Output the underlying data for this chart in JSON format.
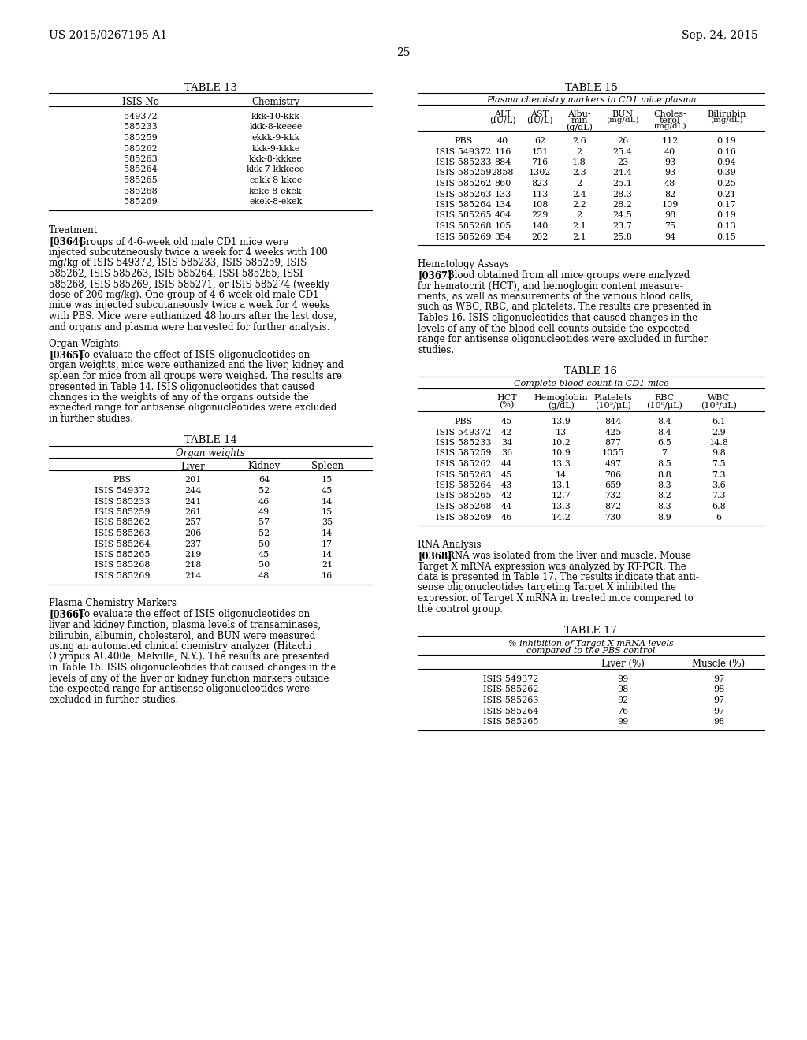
{
  "page_header_left": "US 2015/0267195 A1",
  "page_header_right": "Sep. 24, 2015",
  "page_number": "25",
  "table13": {
    "title": "TABLE 13",
    "headers": [
      "ISIS No",
      "Chemistry"
    ],
    "rows": [
      [
        "549372",
        "kkk-10-kkk"
      ],
      [
        "585233",
        "kkk-8-keeee"
      ],
      [
        "585259",
        "ekkk-9-kkk"
      ],
      [
        "585262",
        "kkk-9-kkke"
      ],
      [
        "585263",
        "kkk-8-kkkee"
      ],
      [
        "585264",
        "kkk-7-kkkeee"
      ],
      [
        "585265",
        "eekk-8-kkee"
      ],
      [
        "585268",
        "keke-8-ekek"
      ],
      [
        "585269",
        "ekek-8-ekek"
      ]
    ]
  },
  "table14": {
    "title": "TABLE 14",
    "subtitle": "Organ weights",
    "col_headers": [
      "",
      "Liver",
      "Kidney",
      "Spleen"
    ],
    "rows": [
      [
        "PBS",
        "201",
        "64",
        "15"
      ],
      [
        "ISIS 549372",
        "244",
        "52",
        "45"
      ],
      [
        "ISIS 585233",
        "241",
        "46",
        "14"
      ],
      [
        "ISIS 585259",
        "261",
        "49",
        "15"
      ],
      [
        "ISIS 585262",
        "257",
        "57",
        "35"
      ],
      [
        "ISIS 585263",
        "206",
        "52",
        "14"
      ],
      [
        "ISIS 585264",
        "237",
        "50",
        "17"
      ],
      [
        "ISIS 585265",
        "219",
        "45",
        "14"
      ],
      [
        "ISIS 585268",
        "218",
        "50",
        "21"
      ],
      [
        "ISIS 585269",
        "214",
        "48",
        "16"
      ]
    ]
  },
  "table15": {
    "title": "TABLE 15",
    "subtitle": "Plasma chemistry markers in CD1 mice plasma",
    "rows": [
      [
        "PBS",
        "40",
        "62",
        "2.6",
        "26",
        "112",
        "0.19"
      ],
      [
        "ISIS 549372",
        "116",
        "151",
        "2",
        "25.4",
        "40",
        "0.16"
      ],
      [
        "ISIS 585233",
        "884",
        "716",
        "1.8",
        "23",
        "93",
        "0.94"
      ],
      [
        "ISIS 585259",
        "2858",
        "1302",
        "2.3",
        "24.4",
        "93",
        "0.39"
      ],
      [
        "ISIS 585262",
        "860",
        "823",
        "2",
        "25.1",
        "48",
        "0.25"
      ],
      [
        "ISIS 585263",
        "133",
        "113",
        "2.4",
        "28.3",
        "82",
        "0.21"
      ],
      [
        "ISIS 585264",
        "134",
        "108",
        "2.2",
        "28.2",
        "109",
        "0.17"
      ],
      [
        "ISIS 585265",
        "404",
        "229",
        "2",
        "24.5",
        "98",
        "0.19"
      ],
      [
        "ISIS 585268",
        "105",
        "140",
        "2.1",
        "23.7",
        "75",
        "0.13"
      ],
      [
        "ISIS 585269",
        "354",
        "202",
        "2.1",
        "25.8",
        "94",
        "0.15"
      ]
    ]
  },
  "table16": {
    "title": "TABLE 16",
    "subtitle": "Complete blood count in CD1 mice",
    "rows": [
      [
        "PBS",
        "45",
        "13.9",
        "844",
        "8.4",
        "6.1"
      ],
      [
        "ISIS 549372",
        "42",
        "13",
        "425",
        "8.4",
        "2.9"
      ],
      [
        "ISIS 585233",
        "34",
        "10.2",
        "877",
        "6.5",
        "14.8"
      ],
      [
        "ISIS 585259",
        "36",
        "10.9",
        "1055",
        "7",
        "9.8"
      ],
      [
        "ISIS 585262",
        "44",
        "13.3",
        "497",
        "8.5",
        "7.5"
      ],
      [
        "ISIS 585263",
        "45",
        "14",
        "706",
        "8.8",
        "7.3"
      ],
      [
        "ISIS 585264",
        "43",
        "13.1",
        "659",
        "8.3",
        "3.6"
      ],
      [
        "ISIS 585265",
        "42",
        "12.7",
        "732",
        "8.2",
        "7.3"
      ],
      [
        "ISIS 585268",
        "44",
        "13.3",
        "872",
        "8.3",
        "6.8"
      ],
      [
        "ISIS 585269",
        "46",
        "14.2",
        "730",
        "8.9",
        "6"
      ]
    ]
  },
  "table17": {
    "title": "TABLE 17",
    "subtitle1": "% inhibition of Target X mRNA levels",
    "subtitle2": "compared to the PBS control",
    "col_headers": [
      "",
      "Liver (%)",
      "Muscle (%)"
    ],
    "rows": [
      [
        "ISIS 549372",
        "99",
        "97"
      ],
      [
        "ISIS 585262",
        "98",
        "98"
      ],
      [
        "ISIS 585263",
        "92",
        "97"
      ],
      [
        "ISIS 585264",
        "76",
        "97"
      ],
      [
        "ISIS 585265",
        "99",
        "98"
      ]
    ]
  },
  "treatment_heading": "Treatment",
  "treatment_lines": [
    "[0364]",
    "Groups of 4-6-week old male CD1 mice were",
    "injected subcutaneously twice a week for 4 weeks with 100",
    "mg/kg of ISIS 549372, ISIS 585233, ISIS 585259, ISIS",
    "585262, ISIS 585263, ISIS 585264, ISSI 585265, ISSI",
    "585268, ISIS 585269, ISIS 585271, or ISIS 585274 (weekly",
    "dose of 200 mg/kg). One group of 4-6-week old male CD1",
    "mice was injected subcutaneously twice a week for 4 weeks",
    "with PBS. Mice were euthanized 48 hours after the last dose,",
    "and organs and plasma were harvested for further analysis."
  ],
  "organ_heading": "Organ Weights",
  "organ_lines": [
    "[0365]",
    "To evaluate the effect of ISIS oligonucleotides on",
    "organ weights, mice were euthanized and the liver, kidney and",
    "spleen for mice from all groups were weighed. The results are",
    "presented in Table 14. ISIS oligonucleotides that caused",
    "changes in the weights of any of the organs outside the",
    "expected range for antisense oligonucleotides were excluded",
    "in further studies."
  ],
  "plasma_heading": "Plasma Chemistry Markers",
  "plasma_lines": [
    "[0366]",
    "To evaluate the effect of ISIS oligonucleotides on",
    "liver and kidney function, plasma levels of transaminases,",
    "bilirubin, albumin, cholesterol, and BUN were measured",
    "using an automated clinical chemistry analyzer (Hitachi",
    "Olympus AU400e, Melville, N.Y.). The results are presented",
    "in Table 15. ISIS oligonucleotides that caused changes in the",
    "levels of any of the liver or kidney function markers outside",
    "the expected range for antisense oligonucleotides were",
    "excluded in further studies."
  ],
  "hematology_heading": "Hematology Assays",
  "hematology_lines": [
    "[0367]",
    "Blood obtained from all mice groups were analyzed",
    "for hematocrit (HCT), and hemoglogin content measure-",
    "ments, as well as measurements of the various blood cells,",
    "such as WBC, RBC, and platelets. The results are presented in",
    "Tables 16. ISIS oligonucleotides that caused changes in the",
    "levels of any of the blood cell counts outside the expected",
    "range for antisense oligonucleotides were excluded in further",
    "studies."
  ],
  "rna_heading": "RNA Analysis",
  "rna_lines": [
    "[0368]",
    "RNA was isolated from the liver and muscle. Mouse",
    "Target X mRNA expression was analyzed by RT-PCR. The",
    "data is presented in Table 17. The results indicate that anti-",
    "sense oligonucleotides targeting Target X inhibited the",
    "expression of Target X mRNA in treated mice compared to",
    "the control group."
  ]
}
